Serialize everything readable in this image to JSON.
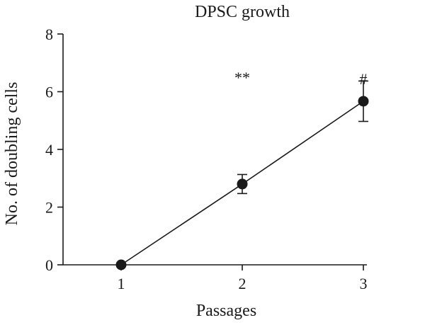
{
  "chart_data": {
    "type": "line",
    "title": "DPSC growth",
    "xlabel": "Passages",
    "ylabel": "No. of doubling cells",
    "x": [
      1,
      2,
      3
    ],
    "x_ticks": [
      "1",
      "2",
      "3"
    ],
    "xlim": [
      1,
      3
    ],
    "ylim": [
      0,
      8
    ],
    "y_ticks": [
      "0",
      "2",
      "4",
      "6",
      "8"
    ],
    "grid": false,
    "series": [
      {
        "values": [
          0,
          2.8,
          5.67
        ],
        "error": [
          0,
          0.33,
          0.7
        ],
        "color": "#1a1a1a"
      }
    ],
    "annotations": [
      {
        "text": "**",
        "x": 2,
        "y": 6.6
      },
      {
        "text": "#",
        "x": 3,
        "y": 6.55
      }
    ]
  }
}
